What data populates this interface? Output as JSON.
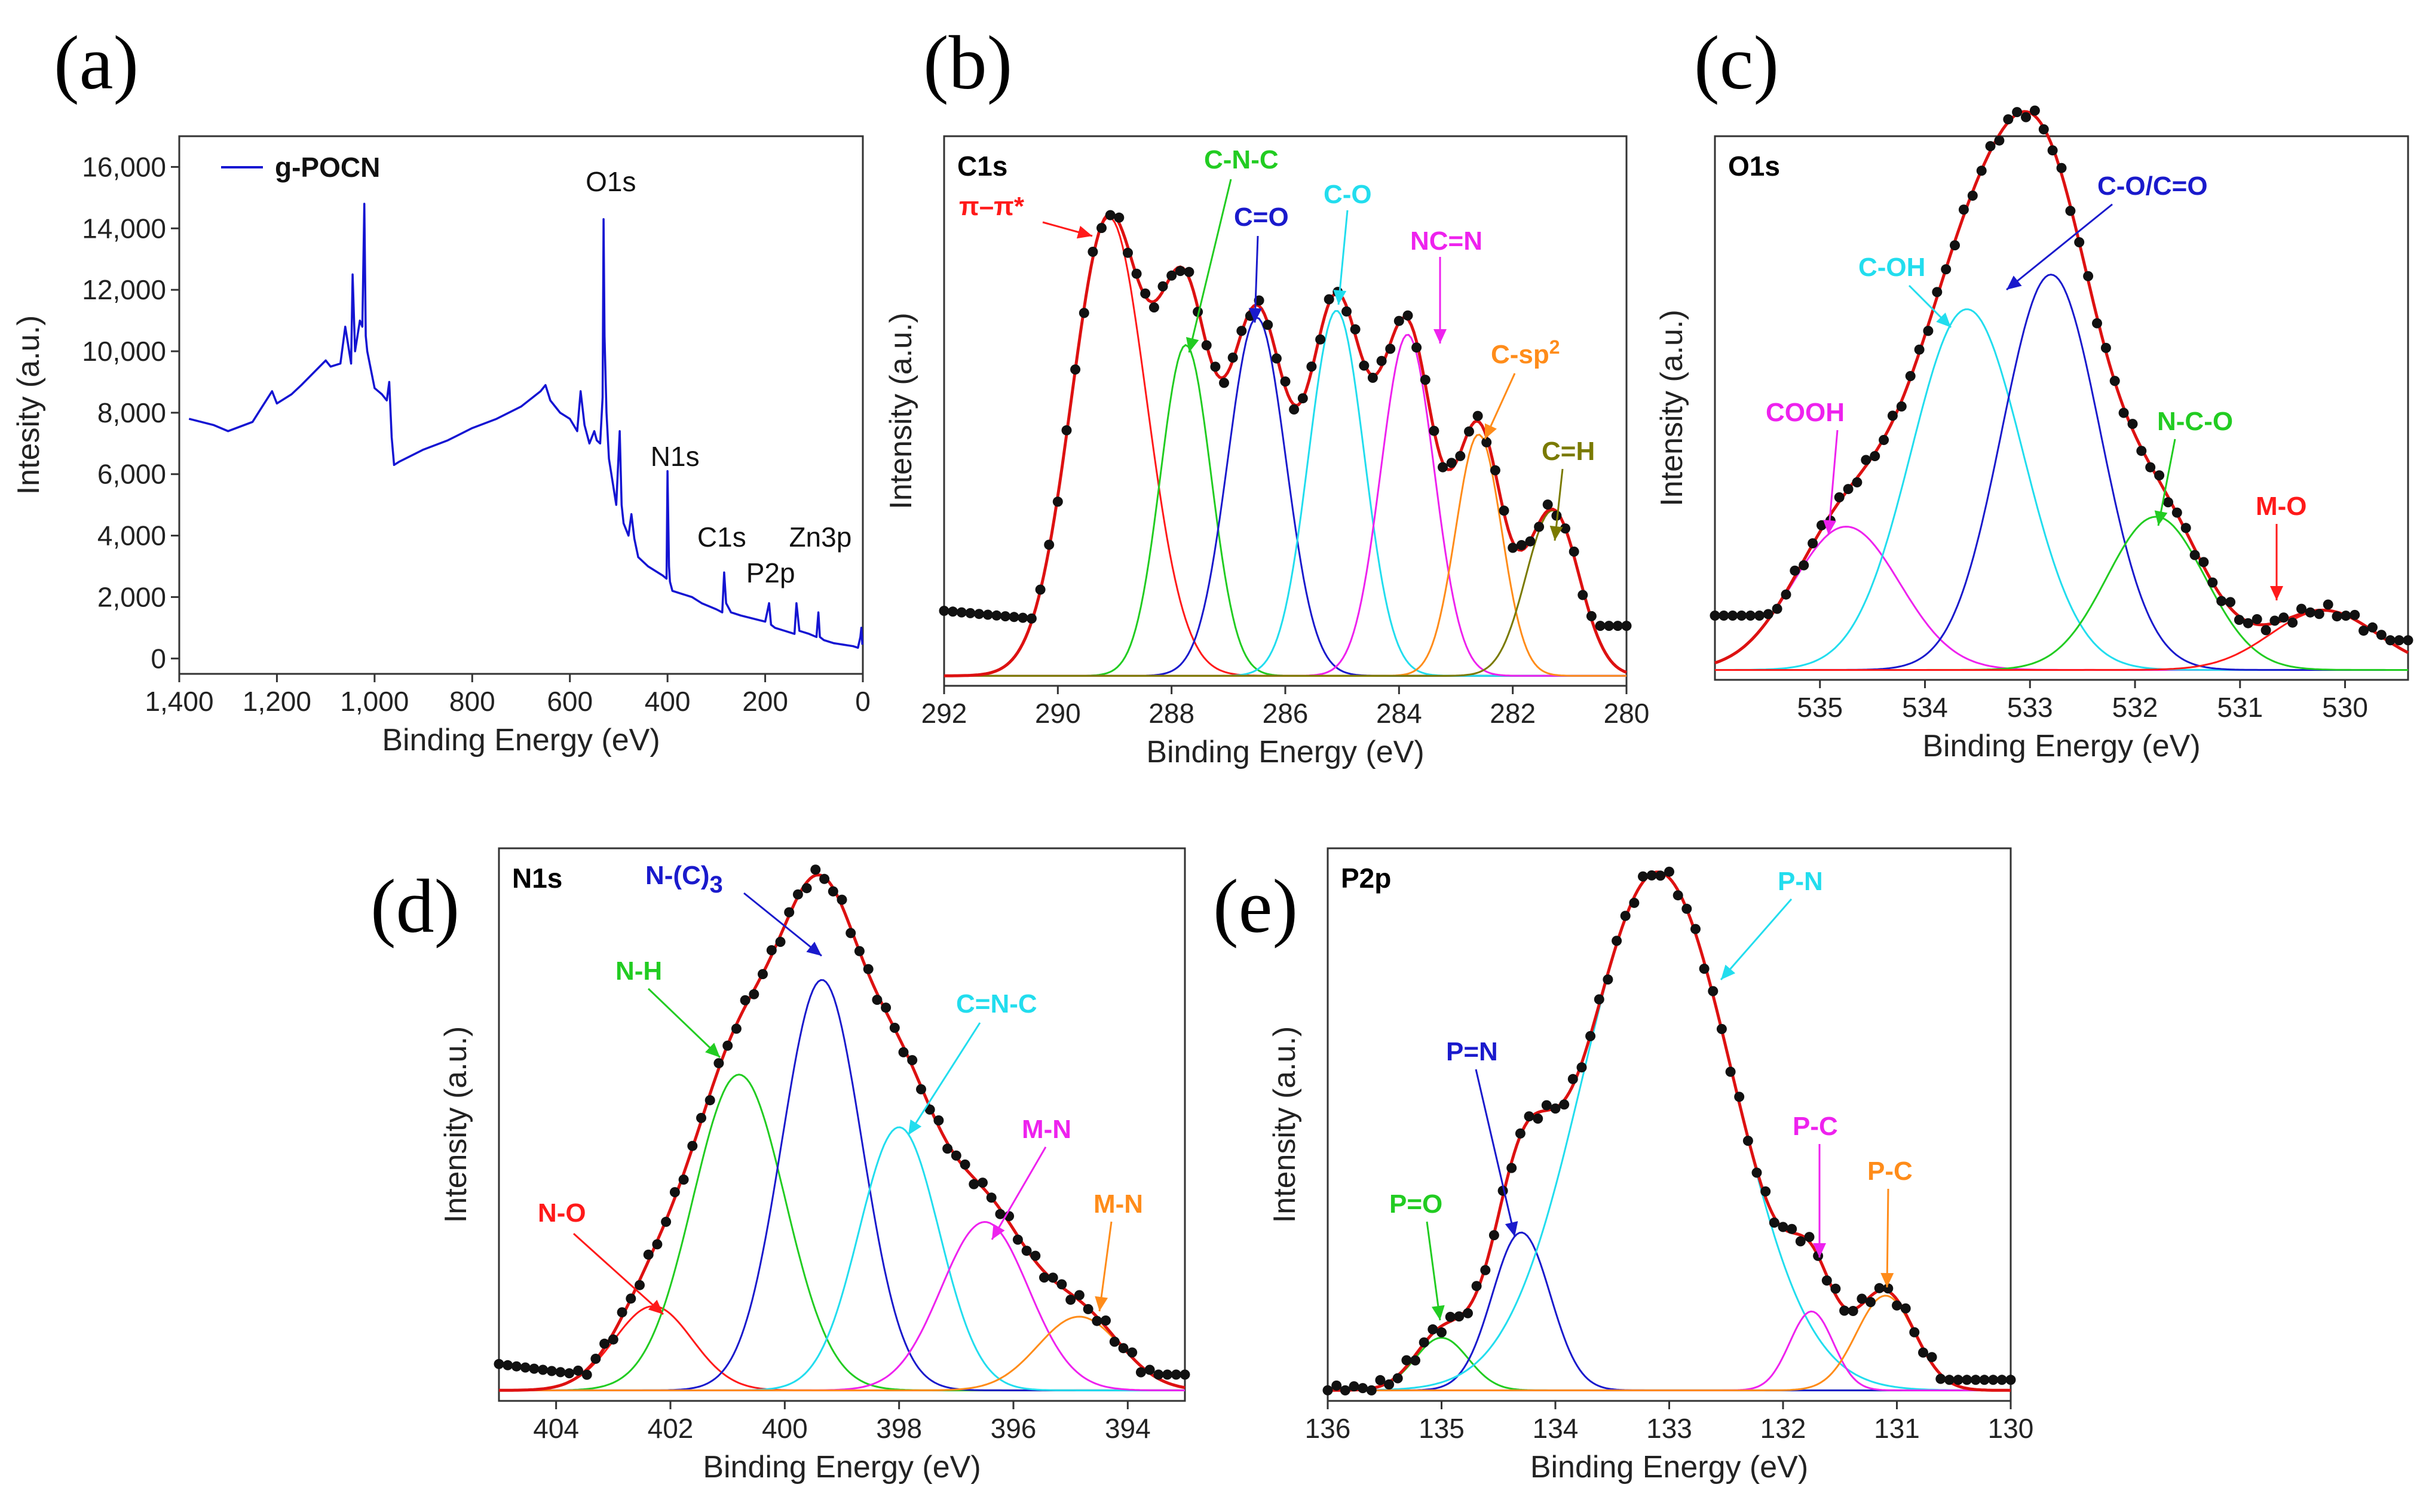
{
  "chart_data": [
    {
      "id": "a",
      "type": "line",
      "panel_label": "(a)",
      "xlabel": "Binding Energy (eV)",
      "ylabel": "Intesity (a.u.)",
      "xlim": [
        1400,
        0
      ],
      "ylim": [
        -500,
        17000
      ],
      "x_ticks": [
        1400,
        1200,
        1000,
        800,
        600,
        400,
        200,
        0
      ],
      "x_tick_labels": [
        "1,400",
        "1,200",
        "1,000",
        "800",
        "600",
        "400",
        "200",
        "0"
      ],
      "y_ticks": [
        0,
        2000,
        4000,
        6000,
        8000,
        10000,
        12000,
        14000,
        16000
      ],
      "y_tick_labels": [
        "0",
        "2,000",
        "4,000",
        "6,000",
        "8,000",
        "10,000",
        "12,000",
        "14,000",
        "16,000"
      ],
      "legend": "g-POCN",
      "legend_position": "top-left",
      "series_color": "#1414d2",
      "x": [
        1380,
        1330,
        1300,
        1250,
        1230,
        1210,
        1200,
        1170,
        1150,
        1100,
        1090,
        1070,
        1060,
        1048,
        1045,
        1040,
        1030,
        1025,
        1021,
        1018,
        1015,
        1000,
        985,
        975,
        970,
        965,
        960,
        950,
        900,
        850,
        800,
        750,
        700,
        660,
        650,
        640,
        630,
        620,
        600,
        585,
        578,
        570,
        560,
        550,
        545,
        538,
        533,
        531,
        529,
        525,
        520,
        505,
        498,
        494,
        490,
        480,
        474,
        468,
        460,
        440,
        410,
        402,
        400,
        397,
        395,
        390,
        370,
        350,
        330,
        300,
        288,
        284,
        280,
        270,
        250,
        200,
        192,
        188,
        180,
        160,
        140,
        136,
        130,
        110,
        95,
        91,
        88,
        80,
        60,
        40,
        20,
        10,
        5,
        3,
        1
      ],
      "y": [
        7800,
        7600,
        7400,
        7700,
        8200,
        8700,
        8300,
        8600,
        8900,
        9700,
        9500,
        9600,
        10800,
        9600,
        12500,
        10000,
        11000,
        10800,
        14800,
        10500,
        10000,
        8800,
        8600,
        8400,
        9000,
        7200,
        6300,
        6400,
        6800,
        7100,
        7500,
        7800,
        8200,
        8700,
        8900,
        8400,
        8200,
        8000,
        7800,
        7400,
        8700,
        7600,
        7000,
        7400,
        7100,
        7000,
        8500,
        14300,
        10500,
        8000,
        6500,
        5000,
        7400,
        5000,
        4400,
        4000,
        4700,
        3900,
        3300,
        3000,
        2700,
        2600,
        6100,
        3000,
        2500,
        2200,
        2100,
        2000,
        1800,
        1600,
        1500,
        2800,
        1800,
        1500,
        1400,
        1200,
        1800,
        1100,
        1000,
        900,
        800,
        1800,
        900,
        800,
        700,
        1500,
        700,
        600,
        500,
        450,
        400,
        350,
        700,
        1000,
        450
      ],
      "peak_labels": [
        {
          "text": "O1s",
          "x": 531
        },
        {
          "text": "N1s",
          "x": 398
        },
        {
          "text": "C1s",
          "x": 284
        },
        {
          "text": "P2p",
          "x": 190
        },
        {
          "text": "Zn3p",
          "x": 90
        }
      ]
    },
    {
      "id": "b",
      "type": "line",
      "panel_label": "(b)",
      "title": "C1s",
      "xlabel": "Binding Energy (eV)",
      "ylabel": "Intensity (a.u.)",
      "xlim": [
        292,
        280
      ],
      "ylim": [
        -0.02,
        1.08
      ],
      "x_ticks": [
        292,
        290,
        288,
        286,
        284,
        282,
        280
      ],
      "x_tick_labels": [
        "292",
        "290",
        "288",
        "286",
        "284",
        "282",
        "280"
      ],
      "background": 0.0,
      "components": [
        {
          "name": "π–π*",
          "color": "#ff1a1a",
          "center": 289.1,
          "amplitude": 0.918,
          "fwhm": 1.55
        },
        {
          "name": "C-N-C",
          "color": "#22cc22",
          "center": 287.75,
          "amplitude": 0.662,
          "fwhm": 1.05
        },
        {
          "name": "C=O",
          "color": "#1a1acc",
          "center": 286.5,
          "amplitude": 0.717,
          "fwhm": 1.2
        },
        {
          "name": "C-O",
          "color": "#22ddee",
          "center": 285.1,
          "amplitude": 0.731,
          "fwhm": 1.15
        },
        {
          "name": "NC=N",
          "color": "#ee22ee",
          "center": 283.85,
          "amplitude": 0.683,
          "fwhm": 1.1
        },
        {
          "name": "C-sp2",
          "color": "#ff8c1a",
          "center": 282.6,
          "amplitude": 0.483,
          "fwhm": 0.95
        },
        {
          "name": "C=H",
          "color": "#7a7a00",
          "center": 281.3,
          "amplitude": 0.331,
          "fwhm": 1.1
        }
      ],
      "envelope_color": "#dd1111",
      "points_color": "#111111",
      "peak_labels": [
        {
          "text": "π–π*",
          "color": "#ff1a1a"
        },
        {
          "text": "C-N-C",
          "color": "#22cc22"
        },
        {
          "text": "C=O",
          "color": "#1a1acc"
        },
        {
          "text": "C-O",
          "color": "#22ddee"
        },
        {
          "text": "NC=N",
          "color": "#ee22ee"
        },
        {
          "text": "C-sp",
          "sup": "2",
          "color": "#ff8c1a"
        },
        {
          "text": "C=H",
          "color": "#7a7a00"
        }
      ]
    },
    {
      "id": "c",
      "type": "line",
      "panel_label": "(c)",
      "title": "O1s",
      "xlabel": "Binding Energy (eV)",
      "ylabel": "Intensity (a.u.)",
      "xlim": [
        536,
        529.4
      ],
      "ylim": [
        -0.02,
        1.08
      ],
      "x_ticks": [
        535,
        534,
        533,
        532,
        531,
        530
      ],
      "x_tick_labels": [
        "535",
        "534",
        "533",
        "532",
        "531",
        "530"
      ],
      "background": 0.0,
      "components": [
        {
          "name": "COOH",
          "color": "#ee22ee",
          "center": 534.75,
          "amplitude": 0.29,
          "fwhm": 1.2
        },
        {
          "name": "C-OH",
          "color": "#22ddee",
          "center": 533.6,
          "amplitude": 0.73,
          "fwhm": 1.25
        },
        {
          "name": "C-O/C=O",
          "color": "#1a1acc",
          "center": 532.8,
          "amplitude": 0.8,
          "fwhm": 1.1
        },
        {
          "name": "N-C-O",
          "color": "#22cc22",
          "center": 531.8,
          "amplitude": 0.31,
          "fwhm": 1.1
        },
        {
          "name": "M-O",
          "color": "#ff1a1a",
          "center": 530.2,
          "amplitude": 0.12,
          "fwhm": 1.2
        }
      ],
      "envelope_color": "#dd1111",
      "points_color": "#111111",
      "peak_labels": [
        {
          "text": "COOH",
          "color": "#ee22ee"
        },
        {
          "text": "C-OH",
          "color": "#22ddee"
        },
        {
          "text": "C-O/C=O",
          "color": "#1a1acc"
        },
        {
          "text": "N-C-O",
          "color": "#22cc22"
        },
        {
          "text": "M-O",
          "color": "#ff1a1a"
        }
      ]
    },
    {
      "id": "d",
      "type": "line",
      "panel_label": "(d)",
      "title": "N1s",
      "xlabel": "Binding Energy (eV)",
      "ylabel": "Intensity (a.u.)",
      "xlim": [
        405,
        393
      ],
      "ylim": [
        -0.02,
        1.03
      ],
      "x_ticks": [
        404,
        402,
        400,
        398,
        396,
        394
      ],
      "x_tick_labels": [
        "404",
        "402",
        "400",
        "398",
        "396",
        "394"
      ],
      "background": 0.0,
      "components": [
        {
          "name": "N-O",
          "color": "#ff1a1a",
          "center": 402.3,
          "amplitude": 0.16,
          "fwhm": 1.6
        },
        {
          "name": "N-H",
          "color": "#22cc22",
          "center": 400.8,
          "amplitude": 0.6,
          "fwhm": 1.9
        },
        {
          "name": "N-(C)3",
          "color": "#1a1acc",
          "center": 399.35,
          "amplitude": 0.78,
          "fwhm": 1.65
        },
        {
          "name": "C=N-C",
          "color": "#22ddee",
          "center": 398.0,
          "amplitude": 0.5,
          "fwhm": 1.65
        },
        {
          "name": "M-N",
          "color": "#ee22ee",
          "center": 396.5,
          "amplitude": 0.32,
          "fwhm": 1.8
        },
        {
          "name": "M-N",
          "color": "#ff8c1a",
          "center": 394.85,
          "amplitude": 0.14,
          "fwhm": 1.7
        }
      ],
      "envelope_color": "#dd1111",
      "points_color": "#111111",
      "peak_labels": [
        {
          "text": "N-O",
          "color": "#ff1a1a"
        },
        {
          "text": "N-H",
          "color": "#22cc22"
        },
        {
          "text": "N-(C)",
          "sub": "3",
          "color": "#1a1acc"
        },
        {
          "text": "C=N-C",
          "color": "#22ddee"
        },
        {
          "text": "M-N",
          "color": "#ee22ee"
        },
        {
          "text": "M-N",
          "color": "#ff8c1a"
        }
      ]
    },
    {
      "id": "e",
      "type": "line",
      "panel_label": "(e)",
      "title": "P2p",
      "xlabel": "Binding Energy (eV)",
      "ylabel": "Intensity (a.u.)",
      "xlim": [
        136,
        130
      ],
      "ylim": [
        -0.02,
        1.03
      ],
      "x_ticks": [
        136,
        135,
        134,
        133,
        132,
        131,
        130
      ],
      "x_tick_labels": [
        "136",
        "135",
        "134",
        "133",
        "132",
        "131",
        "130"
      ],
      "background": 0.0,
      "components": [
        {
          "name": "P=O",
          "color": "#22cc22",
          "center": 135.0,
          "amplitude": 0.1,
          "fwhm": 0.55
        },
        {
          "name": "P=N",
          "color": "#1a1acc",
          "center": 134.3,
          "amplitude": 0.3,
          "fwhm": 0.6
        },
        {
          "name": "P-N",
          "color": "#22ddee",
          "center": 133.1,
          "amplitude": 0.985,
          "fwhm": 1.55
        },
        {
          "name": "P-C",
          "color": "#ee22ee",
          "center": 131.75,
          "amplitude": 0.15,
          "fwhm": 0.45
        },
        {
          "name": "P-C",
          "color": "#ff8c1a",
          "center": 131.1,
          "amplitude": 0.18,
          "fwhm": 0.6
        }
      ],
      "envelope_color": "#dd1111",
      "points_color": "#111111",
      "peak_labels": [
        {
          "text": "P=O",
          "color": "#22cc22"
        },
        {
          "text": "P=N",
          "color": "#1a1acc"
        },
        {
          "text": "P-N",
          "color": "#22ddee"
        },
        {
          "text": "P-C",
          "color": "#ee22ee"
        },
        {
          "text": "P-C",
          "color": "#ff8c1a"
        }
      ]
    }
  ]
}
